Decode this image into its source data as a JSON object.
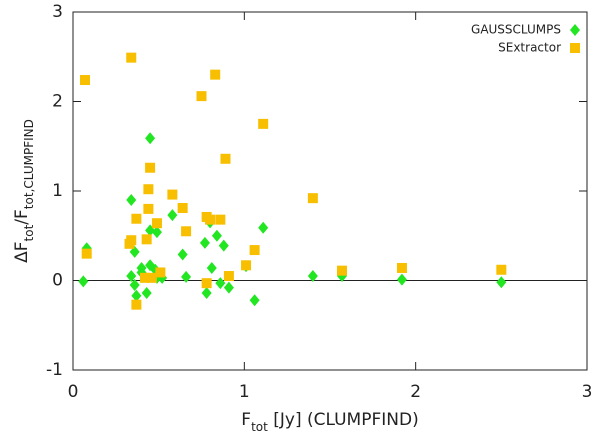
{
  "chart_data": {
    "type": "scatter",
    "xlabel_parts": [
      "F",
      "tot",
      " [Jy] (CLUMPFIND)"
    ],
    "ylabel_parts": [
      "ΔF",
      "tot",
      "/F",
      "tot,CLUMPFIND"
    ],
    "xlim": [
      0,
      3
    ],
    "ylim": [
      -1,
      3
    ],
    "xticks": [
      0,
      1,
      2,
      3
    ],
    "yticks": [
      -1,
      0,
      1,
      2,
      3
    ],
    "hline": 0,
    "legend": "upper right",
    "series": [
      {
        "name": "GAUSSCLUMPS",
        "color": "#22e622",
        "marker": "diamond",
        "x": [
          0.06,
          0.08,
          0.34,
          0.36,
          0.34,
          0.36,
          0.37,
          0.4,
          0.4,
          0.43,
          0.45,
          0.45,
          0.45,
          0.49,
          0.48,
          0.49,
          0.52,
          0.58,
          0.64,
          0.66,
          0.77,
          0.78,
          0.8,
          0.81,
          0.84,
          0.86,
          0.88,
          0.91,
          1.01,
          1.06,
          1.11,
          1.4,
          1.57,
          1.92,
          2.5
        ],
        "values": [
          -0.01,
          0.36,
          0.9,
          0.32,
          0.05,
          -0.05,
          -0.17,
          0.14,
          0.09,
          -0.14,
          0.17,
          1.59,
          0.56,
          0.54,
          0.12,
          0.03,
          0.03,
          0.73,
          0.29,
          0.04,
          0.42,
          -0.14,
          0.65,
          0.14,
          0.5,
          -0.03,
          0.39,
          -0.08,
          0.16,
          -0.22,
          0.59,
          0.05,
          0.05,
          0.01,
          -0.02
        ]
      },
      {
        "name": "SExtractor",
        "color": "#f7bf00",
        "marker": "square",
        "x": [
          0.07,
          0.34,
          0.08,
          0.34,
          0.33,
          0.37,
          0.43,
          0.44,
          0.44,
          0.45,
          0.49,
          0.37,
          0.42,
          0.46,
          0.51,
          0.58,
          0.64,
          0.66,
          0.75,
          0.83,
          0.78,
          0.8,
          0.86,
          0.89,
          0.91,
          0.78,
          1.01,
          1.06,
          1.11,
          1.4,
          1.57,
          1.92,
          2.5
        ],
        "values": [
          2.24,
          2.49,
          0.3,
          0.45,
          0.41,
          0.69,
          0.46,
          0.8,
          1.02,
          1.26,
          0.64,
          -0.27,
          0.03,
          0.03,
          0.09,
          0.96,
          0.81,
          0.55,
          2.06,
          2.3,
          0.71,
          0.68,
          0.68,
          1.36,
          0.05,
          -0.03,
          0.17,
          0.34,
          1.75,
          0.92,
          0.11,
          0.14,
          0.12
        ]
      }
    ]
  }
}
